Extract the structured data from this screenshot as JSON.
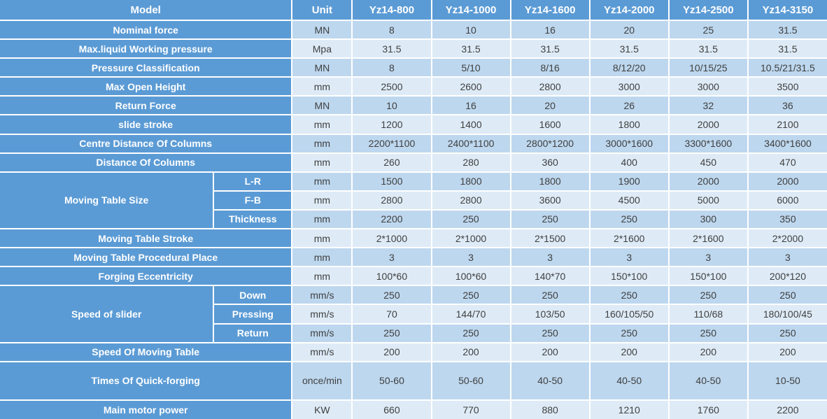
{
  "colors": {
    "header_blue": "#5b9bd5",
    "stripe_dark": "#bdd7ee",
    "stripe_light": "#deebf7",
    "label_text": "#ffffff",
    "data_text": "#404040",
    "grid_border": "#ffffff"
  },
  "table": {
    "header": {
      "model_label": "Model",
      "unit_label": "Unit",
      "columns": [
        "Yz14-800",
        "Yz14-1000",
        "Yz14-1600",
        "Yz14-2000",
        "Yz14-2500",
        "Yz14-3150"
      ]
    },
    "rows": [
      {
        "label": "Nominal force",
        "unit": "MN",
        "values": [
          "8",
          "10",
          "16",
          "20",
          "25",
          "31.5"
        ]
      },
      {
        "label": "Max.liquid Working pressure",
        "unit": "Mpa",
        "values": [
          "31.5",
          "31.5",
          "31.5",
          "31.5",
          "31.5",
          "31.5"
        ]
      },
      {
        "label": "Pressure Classification",
        "unit": "MN",
        "values": [
          "8",
          "5/10",
          "8/16",
          "8/12/20",
          "10/15/25",
          "10.5/21/31.5"
        ]
      },
      {
        "label": "Max Open Height",
        "unit": "mm",
        "values": [
          "2500",
          "2600",
          "2800",
          "3000",
          "3000",
          "3500"
        ]
      },
      {
        "label": "Return Force",
        "unit": "MN",
        "values": [
          "10",
          "16",
          "20",
          "26",
          "32",
          "36"
        ]
      },
      {
        "label": "slide stroke",
        "unit": "mm",
        "values": [
          "1200",
          "1400",
          "1600",
          "1800",
          "2000",
          "2100"
        ]
      },
      {
        "label": "Centre Distance Of Columns",
        "unit": "mm",
        "values": [
          "2200*1100",
          "2400*1100",
          "2800*1200",
          "3000*1600",
          "3300*1600",
          "3400*1600"
        ]
      },
      {
        "label": "Distance Of Columns",
        "unit": "mm",
        "values": [
          "260",
          "280",
          "360",
          "400",
          "450",
          "470"
        ]
      },
      {
        "group": "Moving Table Size",
        "sublabel": "L-R",
        "unit": "mm",
        "values": [
          "1500",
          "1800",
          "1800",
          "1900",
          "2000",
          "2000"
        ]
      },
      {
        "sublabel": "F-B",
        "unit": "mm",
        "values": [
          "2800",
          "2800",
          "3600",
          "4500",
          "5000",
          "6000"
        ]
      },
      {
        "sublabel": "Thickness",
        "unit": "mm",
        "values": [
          "2200",
          "250",
          "250",
          "250",
          "300",
          "350"
        ]
      },
      {
        "label": "Moving Table Stroke",
        "unit": "mm",
        "values": [
          "2*1000",
          "2*1000",
          "2*1500",
          "2*1600",
          "2*1600",
          "2*2000"
        ]
      },
      {
        "label": "Moving Table Procedural Place",
        "unit": "mm",
        "values": [
          "3",
          "3",
          "3",
          "3",
          "3",
          "3"
        ]
      },
      {
        "label": "Forging Eccentricity",
        "unit": "mm",
        "values": [
          "100*60",
          "100*60",
          "140*70",
          "150*100",
          "150*100",
          "200*120"
        ]
      },
      {
        "group": "Speed of slider",
        "sublabel": "Down",
        "unit": "mm/s",
        "values": [
          "250",
          "250",
          "250",
          "250",
          "250",
          "250"
        ]
      },
      {
        "sublabel": "Pressing",
        "unit": "mm/s",
        "values": [
          "70",
          "144/70",
          "103/50",
          "160/105/50",
          "110/68",
          "180/100/45"
        ]
      },
      {
        "sublabel": "Return",
        "unit": "mm/s",
        "values": [
          "250",
          "250",
          "250",
          "250",
          "250",
          "250"
        ]
      },
      {
        "label": "Speed Of Moving Table",
        "unit": "mm/s",
        "values": [
          "200",
          "200",
          "200",
          "200",
          "200",
          "200"
        ]
      },
      {
        "label": "Times Of Quick-forging",
        "unit": "once/min",
        "values": [
          "50-60",
          "50-60",
          "40-50",
          "40-50",
          "40-50",
          "10-50"
        ]
      },
      {
        "label": "Main motor power",
        "unit": "KW",
        "values": [
          "660",
          "770",
          "880",
          "1210",
          "1760",
          "2200"
        ]
      }
    ]
  }
}
